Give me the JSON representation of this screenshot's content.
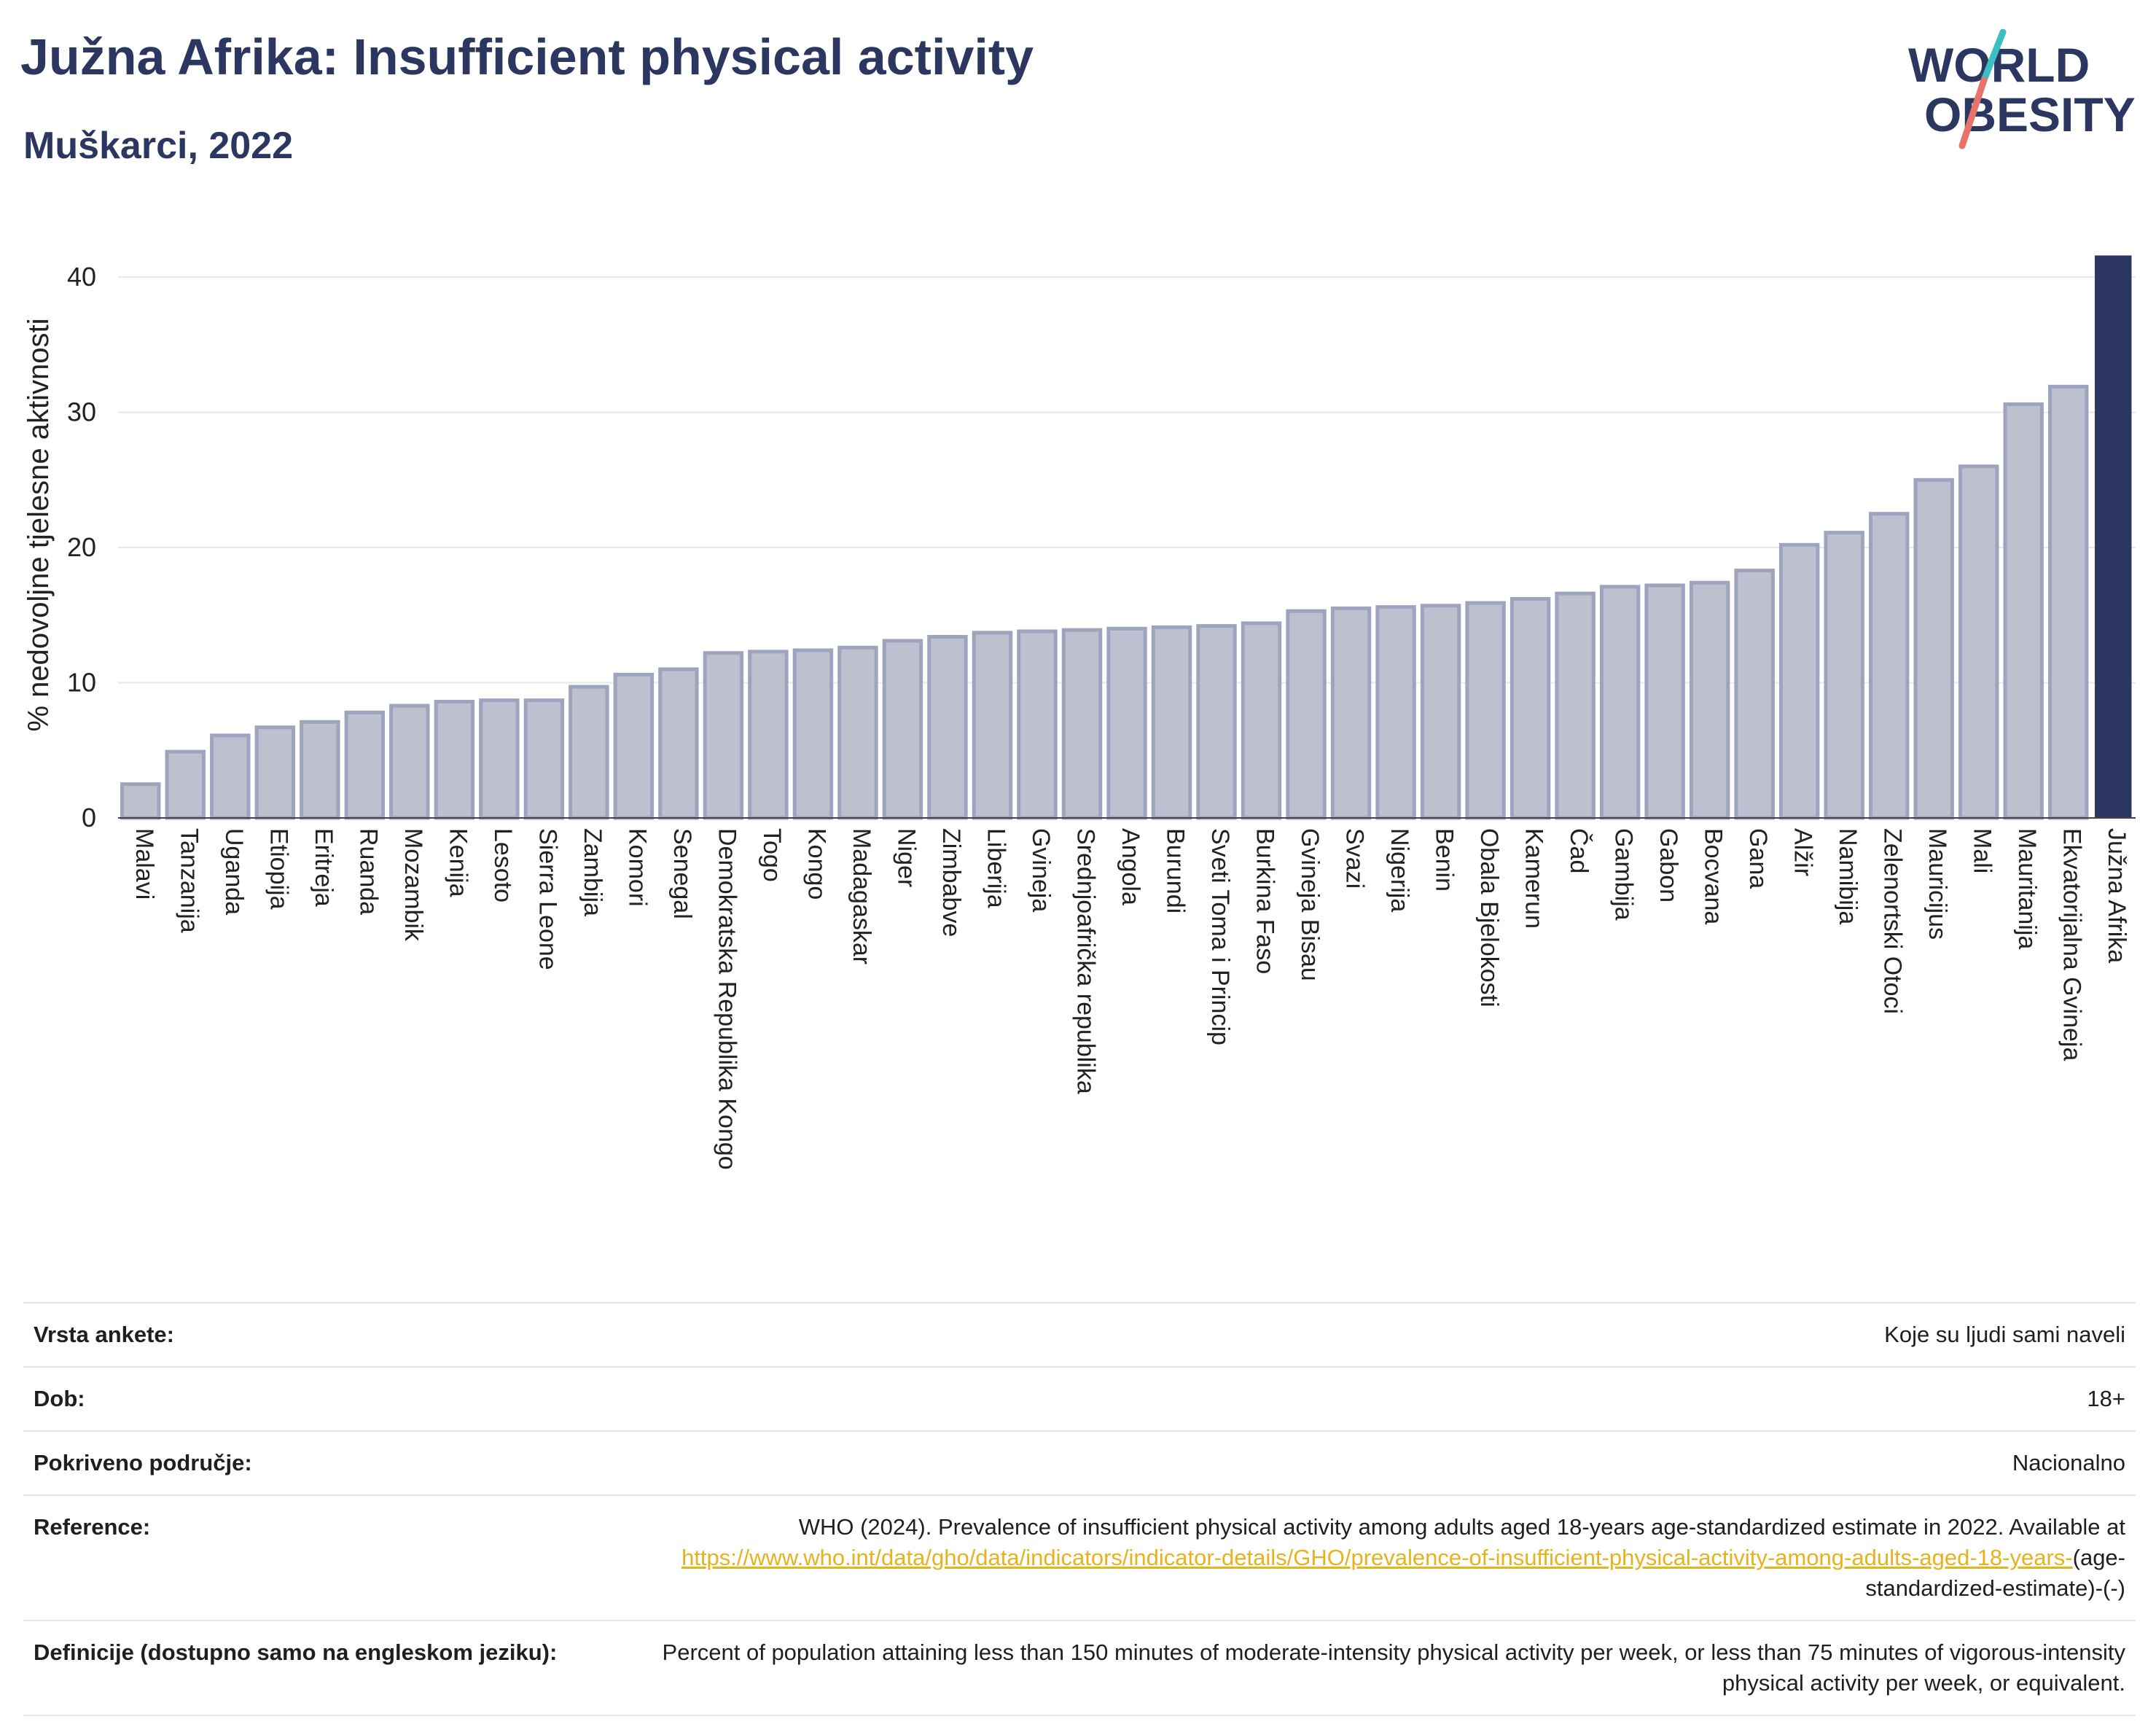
{
  "header": {
    "title": "Južna Afrika: Insufficient physical activity",
    "subtitle": "Muškarci, 2022"
  },
  "logo": {
    "line1": "WORLD",
    "line2": "OBESITY",
    "text_color": "#2b3760",
    "slash_teal": "#3bbfc2",
    "slash_coral": "#e8736a"
  },
  "colors": {
    "bar": "#bcc0cf",
    "bar_border": "#9ea4bd",
    "highlight": "#2b3760",
    "gridline": "#e7e8ec"
  },
  "chart_data": {
    "type": "bar",
    "ylabel": "% nedovoljne tjelesne aktivnosti",
    "ylim": [
      0,
      42
    ],
    "yticks": [
      0,
      10,
      20,
      30,
      40
    ],
    "highlight": "Južna Afrika",
    "categories": [
      "Malavi",
      "Tanzanija",
      "Uganda",
      "Etiopija",
      "Eritreja",
      "Ruanda",
      "Mozambik",
      "Kenija",
      "Lesoto",
      "Sierra Leone",
      "Zambija",
      "Komori",
      "Senegal",
      "Demokratska Republika Kongo",
      "Togo",
      "Kongo",
      "Madagaskar",
      "Niger",
      "Zimbabve",
      "Liberija",
      "Gvineja",
      "Srednjoafrička republika",
      "Angola",
      "Burundi",
      "Sveti Toma i Princip",
      "Burkina Faso",
      "Gvineja Bisau",
      "Svazi",
      "Nigerija",
      "Benin",
      "Obala Bjelokosti",
      "Kamerun",
      "Čad",
      "Gambija",
      "Gabon",
      "Bocvana",
      "Gana",
      "Alžir",
      "Namibija",
      "Zelenortski Otoci",
      "Mauricijus",
      "Mali",
      "Mauritanija",
      "Ekvatorijalna Gvineja",
      "Južna Afrika"
    ],
    "values": [
      2.5,
      4.9,
      6.1,
      6.7,
      7.1,
      7.8,
      8.3,
      8.6,
      8.7,
      8.7,
      9.7,
      10.6,
      11.0,
      12.2,
      12.3,
      12.4,
      12.6,
      13.1,
      13.4,
      13.7,
      13.8,
      13.9,
      14.0,
      14.1,
      14.2,
      14.4,
      15.3,
      15.5,
      15.6,
      15.7,
      15.9,
      16.2,
      16.6,
      17.1,
      17.2,
      17.4,
      18.3,
      20.2,
      21.1,
      22.5,
      25.0,
      26.0,
      30.6,
      31.9,
      41.6
    ]
  },
  "info": {
    "survey_label": "Vrsta ankete:",
    "survey_value": "Koje su ljudi sami naveli",
    "age_label": "Dob:",
    "age_value": "18+",
    "coverage_label": "Pokriveno područje:",
    "coverage_value": "Nacionalno",
    "reference_label": "Reference:",
    "reference_text": "WHO (2024). Prevalence of insufficient physical activity among adults aged 18-years age-standardized estimate in 2022. Available at",
    "reference_link": "https://www.who.int/data/gho/data/indicators/indicator-details/GHO/prevalence-of-insufficient-physical-activity-among-adults-aged-18-years-",
    "reference_suffix": "(age-standardized-estimate)-(-)",
    "definitions_label": "Definicije (dostupno samo na engleskom jeziku):",
    "definitions_value": "Percent of population attaining less than 150 minutes of moderate-intensity physical activity per week, or less than 75 minutes of vigorous-intensity physical activity per week, or equivalent."
  }
}
